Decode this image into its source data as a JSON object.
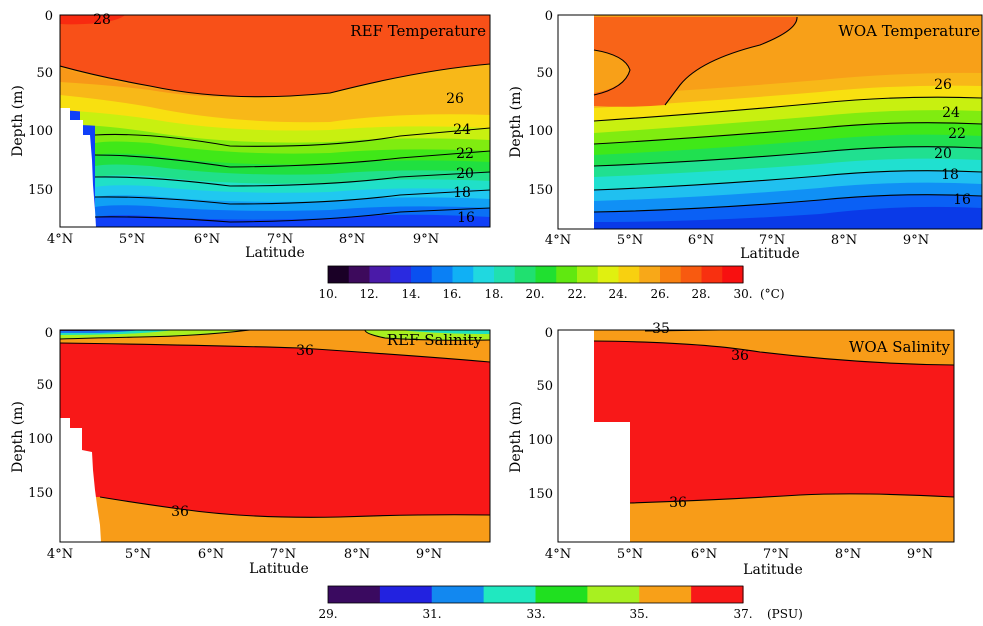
{
  "chart_data": [
    {
      "type": "heatmap",
      "title": "REF Temperature",
      "xlabel": "Latitude",
      "ylabel": "Depth (m)",
      "xlim": [
        4,
        10
      ],
      "ylim": [
        0,
        180
      ],
      "y_reversed": true,
      "x_ticks": [
        "4°N",
        "5°N",
        "6°N",
        "7°N",
        "8°N",
        "9°N"
      ],
      "y_ticks": [
        "0",
        "50",
        "100",
        "150"
      ],
      "contour_labels": [
        "28",
        "26",
        "24",
        "22",
        "20",
        "18",
        "16"
      ]
    },
    {
      "type": "heatmap",
      "title": "WOA Temperature",
      "xlabel": "Latitude",
      "ylabel": "Depth (m)",
      "xlim": [
        4,
        10
      ],
      "ylim": [
        0,
        180
      ],
      "y_reversed": true,
      "x_ticks": [
        "4°N",
        "5°N",
        "6°N",
        "7°N",
        "8°N",
        "9°N"
      ],
      "y_ticks": [
        "0",
        "50",
        "100",
        "150"
      ],
      "contour_labels": [
        "26",
        "24",
        "22",
        "20",
        "18",
        "16"
      ]
    },
    {
      "type": "heatmap",
      "title": "REF Salinity",
      "xlabel": "Latitude",
      "ylabel": "Depth (m)",
      "xlim": [
        4,
        10
      ],
      "ylim": [
        0,
        200
      ],
      "y_reversed": true,
      "x_ticks": [
        "4°N",
        "5°N",
        "6°N",
        "7°N",
        "8°N",
        "9°N"
      ],
      "y_ticks": [
        "0",
        "50",
        "100",
        "150"
      ],
      "contour_labels": [
        "36",
        "36"
      ]
    },
    {
      "type": "heatmap",
      "title": "WOA Salinity",
      "xlabel": "Latitude",
      "ylabel": "Depth (m)",
      "xlim": [
        4,
        10
      ],
      "ylim": [
        0,
        200
      ],
      "y_reversed": true,
      "x_ticks": [
        "4°N",
        "5°N",
        "6°N",
        "7°N",
        "8°N",
        "9°N"
      ],
      "y_ticks": [
        "0",
        "50",
        "100",
        "150"
      ],
      "contour_labels": [
        "35",
        "36",
        "36"
      ]
    }
  ],
  "colorbars": {
    "temperature": {
      "tick_labels": [
        "10.",
        "12.",
        "14.",
        "16.",
        "18.",
        "20.",
        "22.",
        "24.",
        "26.",
        "28.",
        "30."
      ],
      "unit": "(°C)",
      "range": [
        10,
        30
      ],
      "colors": [
        "#1a0026",
        "#3d0a5c",
        "#4a1aa8",
        "#2a2ae0",
        "#0a50f0",
        "#0a80f5",
        "#10b0f5",
        "#20d8e0",
        "#20e0b0",
        "#20e070",
        "#20e030",
        "#60e810",
        "#a8f010",
        "#e0f010",
        "#f8d010",
        "#f8a818",
        "#f88010",
        "#f85a10",
        "#f83010",
        "#f81010"
      ]
    },
    "salinity": {
      "tick_labels": [
        "29.",
        "31.",
        "33.",
        "35.",
        "37."
      ],
      "unit": "(PSU)",
      "range": [
        29,
        37
      ],
      "colors": [
        "#3a0a60",
        "#2222e0",
        "#1288f0",
        "#20e8c0",
        "#20e020",
        "#a8f020",
        "#f8a018",
        "#f81818"
      ]
    }
  }
}
